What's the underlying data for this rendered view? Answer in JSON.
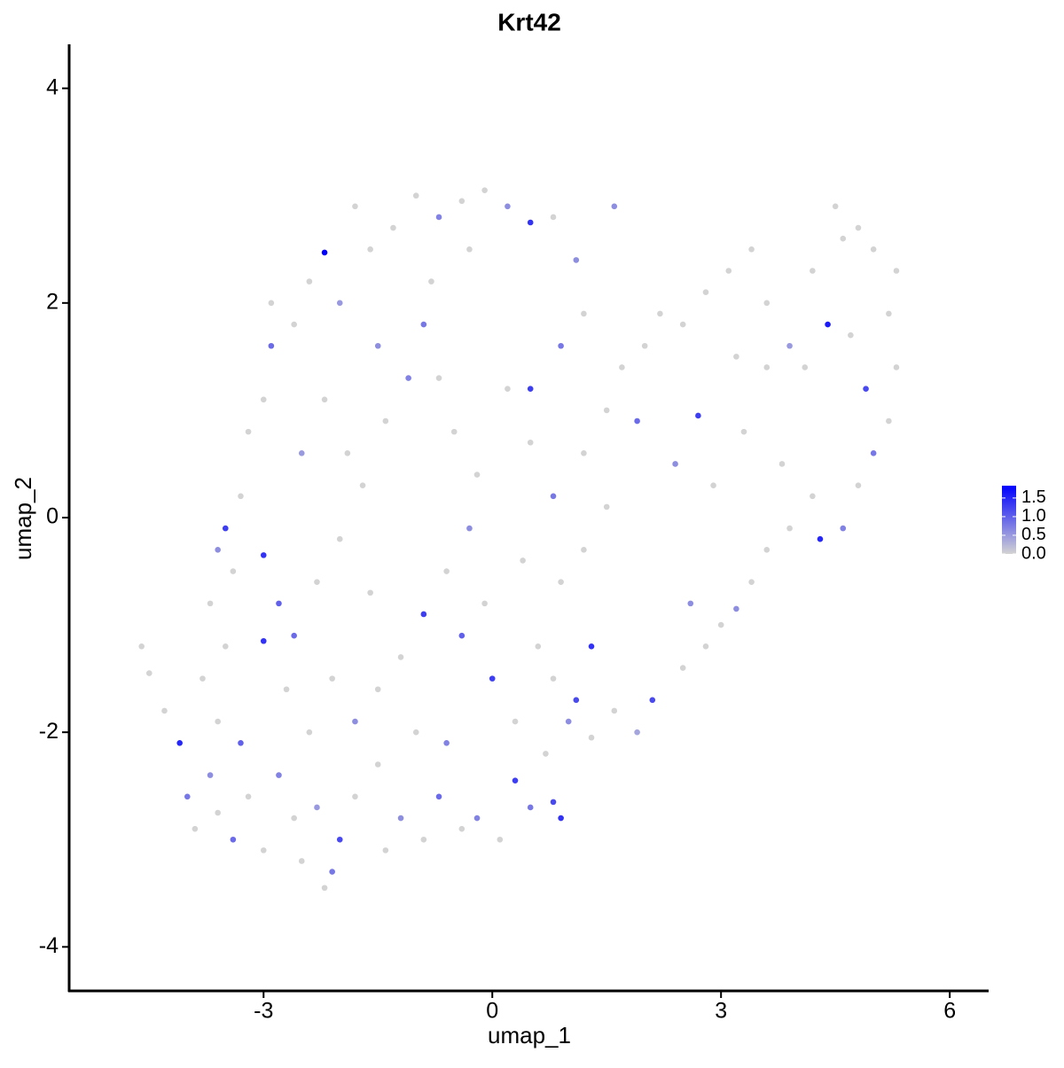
{
  "chart_data": {
    "type": "scatter",
    "title": "Krt42",
    "x_label": "umap_1",
    "y_label": "umap_2",
    "xlim": [
      -5.55,
      6.51
    ],
    "ylim": [
      -4.41,
      4.41
    ],
    "xticks": [
      -3,
      0,
      3,
      6
    ],
    "yticks": [
      -4,
      -2,
      0,
      2,
      4
    ],
    "low_color": "#d3d3d3",
    "high_color": "#0000ff",
    "color_lim": [
      0,
      1.83
    ],
    "color_ticks": [
      {
        "value": 0,
        "label": "0.0"
      },
      {
        "value": 0.5,
        "label": "0.5"
      },
      {
        "value": 1,
        "label": "1.0"
      },
      {
        "value": 1.5,
        "label": "1.5"
      }
    ],
    "x": [
      -4.6,
      -4.5,
      -4.3,
      -4.1,
      -4.0,
      -3.9,
      -3.7,
      -3.6,
      -3.8,
      -3.5,
      -3.3,
      -3.2,
      -3.4,
      -3.0,
      -2.8,
      -2.6,
      -2.5,
      -2.3,
      -2.1,
      -2.0,
      -2.2,
      -1.8,
      -1.5,
      -1.4,
      -1.2,
      -0.9,
      -0.7,
      -0.4,
      -0.2,
      0.1,
      0.3,
      0.5,
      0.8,
      0.9,
      0.7,
      1.0,
      1.1,
      1.3,
      1.6,
      1.9,
      2.1,
      2.5,
      2.8,
      3.0,
      3.2,
      3.4,
      3.6,
      3.9,
      4.2,
      4.3,
      4.6,
      4.8,
      5.0,
      5.2,
      5.3,
      5.2,
      5.3,
      5.0,
      4.8,
      4.5,
      4.6,
      4.4,
      4.9,
      4.1,
      3.9,
      3.6,
      3.4,
      3.1,
      2.8,
      2.5,
      2.2,
      2.0,
      1.7,
      1.5,
      2.7,
      3.3,
      3.8,
      2.9,
      2.4,
      1.9,
      1.2,
      0.8,
      0.5,
      0.2,
      0.5,
      0.9,
      1.6,
      1.1,
      0.8,
      0.5,
      0.2,
      -0.1,
      -0.4,
      -0.7,
      -1.0,
      -1.3,
      -1.6,
      -1.8,
      -2.2,
      -2.4,
      -2.0,
      -2.6,
      -2.9,
      -3.0,
      -3.2,
      -3.3,
      -3.5,
      -3.6,
      -3.7,
      -3.4,
      -3.0,
      -2.8,
      -2.6,
      -2.3,
      -2.0,
      -1.7,
      -1.4,
      -1.1,
      -0.9,
      -0.7,
      -0.5,
      -0.2,
      -0.3,
      -0.6,
      -0.9,
      -1.2,
      -1.5,
      -1.8,
      -2.1,
      -2.4,
      -2.7,
      -3.0,
      -0.4,
      0.0,
      0.3,
      0.6,
      0.9,
      1.2,
      1.5,
      0.4,
      -0.1,
      -1.6,
      -1.9,
      -2.2,
      -2.5,
      -1.5,
      -0.8,
      -0.3,
      2.6,
      3.6,
      4.2,
      4.7,
      1.3,
      0.8,
      -1.0,
      -3.6,
      -0.6,
      -2.9,
      1.2,
      3.2
    ],
    "values": [
      -1.2,
      -1.45,
      -1.8,
      -2.1,
      -2.6,
      -2.9,
      -2.4,
      -1.9,
      -1.5,
      -1.2,
      -2.1,
      -2.6,
      -3.0,
      -3.1,
      -2.4,
      -2.8,
      -3.2,
      -2.7,
      -3.3,
      -3.0,
      -3.45,
      -2.6,
      -2.3,
      -3.1,
      -2.8,
      -3.0,
      -2.6,
      -2.9,
      -2.8,
      -3.0,
      -2.45,
      -2.7,
      -2.65,
      -2.8,
      -2.2,
      -1.9,
      -1.7,
      -2.05,
      -1.8,
      -2.0,
      -1.7,
      -1.4,
      -1.2,
      -1.0,
      -0.85,
      -0.6,
      -0.3,
      -0.1,
      0.2,
      -0.2,
      -0.1,
      0.3,
      0.6,
      0.9,
      1.4,
      1.9,
      2.3,
      2.5,
      2.7,
      2.9,
      2.6,
      1.8,
      1.2,
      1.4,
      1.6,
      2.0,
      2.5,
      2.3,
      2.1,
      1.8,
      1.9,
      1.6,
      1.4,
      1.0,
      0.95,
      0.8,
      0.5,
      0.3,
      0.5,
      0.9,
      0.6,
      0.2,
      0.7,
      1.2,
      1.2,
      1.6,
      2.9,
      2.4,
      2.8,
      2.75,
      2.9,
      3.05,
      2.95,
      2.8,
      3.0,
      2.7,
      2.5,
      2.9,
      2.47,
      2.2,
      2.0,
      1.8,
      1.6,
      1.1,
      0.8,
      0.2,
      -0.1,
      -0.3,
      -0.8,
      -0.5,
      -0.35,
      -0.8,
      -1.1,
      -0.6,
      -0.2,
      0.3,
      0.9,
      1.3,
      1.8,
      1.3,
      0.8,
      0.4,
      -0.1,
      -0.5,
      -0.9,
      -1.3,
      -1.6,
      -1.9,
      -1.5,
      -2.0,
      -1.6,
      -1.15,
      -1.1,
      -1.5,
      -1.9,
      -1.2,
      -0.6,
      -0.3,
      0.1,
      -0.4,
      -0.8,
      -0.7,
      0.6,
      1.1,
      0.6,
      1.6,
      2.2,
      2.5,
      -0.8,
      1.4,
      2.3,
      1.7,
      -1.2,
      -1.5,
      -2.0,
      -2.75,
      -2.1,
      2.0,
      1.9,
      1.5
    ],
    "expression": [
      0,
      0,
      0,
      1.5,
      0.8,
      0,
      0.6,
      0,
      0,
      0,
      1.0,
      0,
      0.9,
      0,
      0.7,
      0,
      0,
      0.5,
      0.8,
      1.2,
      0,
      0,
      0,
      0,
      0.6,
      0,
      0.9,
      0,
      0.7,
      0,
      1.3,
      0.8,
      1.2,
      1.4,
      0,
      0.6,
      1.2,
      0,
      0,
      0.4,
      1.2,
      0,
      0,
      0,
      0.6,
      0,
      0,
      0,
      0,
      1.5,
      0.7,
      0,
      0.8,
      0,
      0,
      0,
      0,
      0,
      0,
      0,
      0,
      1.6,
      1.2,
      0,
      0.5,
      0,
      0,
      0,
      0,
      0,
      0,
      0,
      0,
      0,
      1.3,
      0,
      0,
      0,
      0.6,
      0.9,
      0,
      0.8,
      0,
      0,
      1.3,
      0.8,
      0.6,
      0.6,
      0,
      1.4,
      0.6,
      0,
      0,
      0.7,
      0,
      0,
      0,
      0,
      1.9,
      0,
      0.5,
      0,
      0.9,
      0,
      0,
      0,
      1.3,
      0.6,
      0,
      0,
      1.4,
      1.0,
      0.9,
      0,
      0,
      0,
      0,
      0.7,
      0.8,
      0,
      0,
      0,
      0.6,
      0,
      1.3,
      0,
      0,
      0.6,
      0,
      0,
      0,
      1.4,
      1.0,
      1.3,
      0,
      0,
      0,
      0,
      0,
      0,
      0,
      0,
      0,
      0,
      0.5,
      0.6,
      0,
      0,
      0.6,
      0,
      0,
      0,
      1.4,
      0,
      0,
      0,
      0.7,
      0,
      0,
      0
    ]
  }
}
